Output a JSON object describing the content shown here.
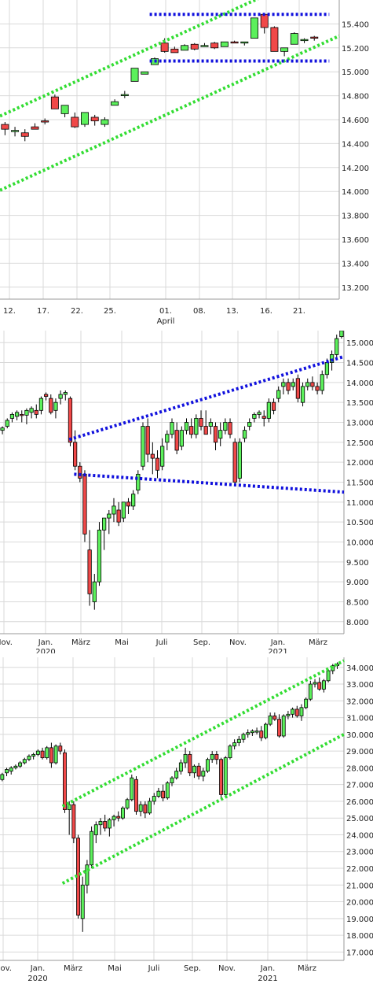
{
  "chart_data": [
    {
      "type": "candlestick",
      "ylim": [
        13100,
        15600
      ],
      "yticks": [
        13200,
        13400,
        13600,
        13800,
        14000,
        14200,
        14400,
        14600,
        14800,
        15000,
        15200,
        15400
      ],
      "xtick_labels": [
        "12.",
        "17.",
        "22.",
        "25.",
        "01.",
        "08.",
        "13.",
        "16.",
        "21."
      ],
      "xsub_label": "April",
      "grid": true,
      "candles": [
        [
          14560,
          14580,
          14470,
          14520
        ],
        [
          14500,
          14540,
          14460,
          14510
        ],
        [
          14490,
          14520,
          14420,
          14460
        ],
        [
          14540,
          14570,
          14520,
          14520
        ],
        [
          14590,
          14610,
          14560,
          14580
        ],
        [
          14790,
          14810,
          14690,
          14690
        ],
        [
          14650,
          14720,
          14620,
          14720
        ],
        [
          14620,
          14660,
          14530,
          14540
        ],
        [
          14560,
          14650,
          14540,
          14660
        ],
        [
          14620,
          14640,
          14550,
          14590
        ],
        [
          14560,
          14620,
          14540,
          14600
        ],
        [
          14720,
          14770,
          14720,
          14750
        ],
        [
          14800,
          14840,
          14780,
          14810
        ],
        [
          14920,
          15020,
          14920,
          15030
        ],
        [
          14980,
          15000,
          14980,
          15000
        ],
        [
          15060,
          15120,
          15060,
          15110
        ],
        [
          15240,
          15280,
          15160,
          15170
        ],
        [
          15190,
          15210,
          15160,
          15160
        ],
        [
          15180,
          15230,
          15180,
          15220
        ],
        [
          15230,
          15240,
          15180,
          15190
        ],
        [
          15210,
          15240,
          15210,
          15220
        ],
        [
          15240,
          15250,
          15190,
          15200
        ],
        [
          15210,
          15250,
          15210,
          15250
        ],
        [
          15250,
          15260,
          15240,
          15240
        ],
        [
          15240,
          15250,
          15220,
          15250
        ],
        [
          15280,
          15450,
          15280,
          15450
        ],
        [
          15480,
          15490,
          15320,
          15370
        ],
        [
          15370,
          15380,
          15170,
          15170
        ],
        [
          15170,
          15200,
          15130,
          15200
        ],
        [
          15230,
          15330,
          15230,
          15320
        ],
        [
          15270,
          15280,
          15240,
          15270
        ],
        [
          15290,
          15300,
          15260,
          15280
        ]
      ],
      "channel_lines": [
        {
          "color": "#33dd33",
          "from": [
            0,
            14630
          ],
          "to": [
            34,
            15920
          ]
        },
        {
          "color": "#33dd33",
          "from": [
            0,
            14010
          ],
          "to": [
            34,
            15300
          ]
        }
      ],
      "horizontal_lines": [
        {
          "color": "#1010dd",
          "value": 15480,
          "from": 15,
          "to": 33
        },
        {
          "color": "#1010dd",
          "value": 15090,
          "from": 15,
          "to": 33
        }
      ],
      "slot_count": 34
    },
    {
      "type": "candlestick",
      "ylim": [
        7700,
        15300
      ],
      "yticks": [
        8000,
        8500,
        9000,
        9500,
        10000,
        10500,
        11000,
        11500,
        12000,
        12500,
        13000,
        13500,
        14000,
        14500,
        15000
      ],
      "xtick_labels": [
        "Nov.",
        "Jan.",
        "März",
        "Mai",
        "Juli",
        "Sep.",
        "Nov.",
        "Jan.",
        "März"
      ],
      "xsub_labels": [
        "2020",
        "2021"
      ],
      "grid": true,
      "candles": [
        [
          12800,
          12900,
          12700,
          12860
        ],
        [
          12900,
          13100,
          12850,
          13050
        ],
        [
          13100,
          13250,
          13000,
          13200
        ],
        [
          13150,
          13300,
          13050,
          13250
        ],
        [
          13200,
          13300,
          13000,
          13180
        ],
        [
          13180,
          13350,
          12950,
          13300
        ],
        [
          13250,
          13400,
          13100,
          13350
        ],
        [
          13300,
          13450,
          13100,
          13200
        ],
        [
          13300,
          13650,
          13200,
          13600
        ],
        [
          13700,
          13750,
          13550,
          13650
        ],
        [
          13600,
          13700,
          13200,
          13250
        ],
        [
          13300,
          13600,
          13100,
          13500
        ],
        [
          13600,
          13800,
          13450,
          13700
        ],
        [
          13700,
          13800,
          13550,
          13750
        ],
        [
          13600,
          13650,
          12400,
          12500
        ],
        [
          12500,
          12800,
          11800,
          11900
        ],
        [
          11900,
          12000,
          11500,
          11600
        ],
        [
          11700,
          11800,
          10000,
          10200
        ],
        [
          9800,
          10300,
          8400,
          8700
        ],
        [
          8500,
          9200,
          8300,
          9000
        ],
        [
          9000,
          10500,
          8900,
          10300
        ],
        [
          10300,
          10600,
          9800,
          10600
        ],
        [
          10600,
          10800,
          10200,
          10700
        ],
        [
          10700,
          11100,
          10500,
          10900
        ],
        [
          10800,
          11000,
          10400,
          10500
        ],
        [
          10600,
          11000,
          10500,
          11000
        ],
        [
          11000,
          11100,
          10700,
          10900
        ],
        [
          10900,
          11300,
          10800,
          11200
        ],
        [
          11300,
          11800,
          11200,
          11700
        ],
        [
          11900,
          13000,
          11800,
          12900
        ],
        [
          12900,
          13100,
          12000,
          12200
        ],
        [
          12200,
          12500,
          11700,
          12100
        ],
        [
          12100,
          12300,
          11600,
          11800
        ],
        [
          11900,
          12600,
          11800,
          12400
        ],
        [
          12500,
          12800,
          12300,
          12700
        ],
        [
          12700,
          13100,
          12600,
          13000
        ],
        [
          12800,
          13000,
          12200,
          12300
        ],
        [
          12400,
          12900,
          12300,
          12800
        ],
        [
          12800,
          13100,
          12700,
          13000
        ],
        [
          12900,
          13100,
          12600,
          12700
        ],
        [
          12700,
          13200,
          12600,
          13100
        ],
        [
          13100,
          13300,
          12800,
          12900
        ],
        [
          12900,
          13300,
          12700,
          12700
        ],
        [
          12900,
          13100,
          12700,
          13000
        ],
        [
          12900,
          13000,
          12300,
          12500
        ],
        [
          12600,
          13000,
          12400,
          12800
        ],
        [
          12800,
          13100,
          12700,
          13000
        ],
        [
          13000,
          13100,
          12600,
          12700
        ],
        [
          12500,
          12600,
          11400,
          11500
        ],
        [
          11600,
          12600,
          11500,
          12500
        ],
        [
          12600,
          12900,
          12500,
          12800
        ],
        [
          12900,
          13100,
          12800,
          13000
        ],
        [
          13100,
          13250,
          13000,
          13200
        ],
        [
          13200,
          13300,
          13100,
          13250
        ],
        [
          13150,
          13300,
          12900,
          13100
        ],
        [
          13100,
          13600,
          13000,
          13500
        ],
        [
          13500,
          13600,
          13200,
          13300
        ],
        [
          13600,
          13900,
          13500,
          13800
        ],
        [
          13900,
          14100,
          13700,
          14000
        ],
        [
          14000,
          14100,
          13700,
          13800
        ],
        [
          13900,
          14100,
          13800,
          14000
        ],
        [
          14100,
          14200,
          13500,
          13600
        ],
        [
          13500,
          14000,
          13400,
          13900
        ],
        [
          13900,
          14100,
          13800,
          14000
        ],
        [
          14000,
          14150,
          13800,
          13900
        ],
        [
          13900,
          14000,
          13700,
          13800
        ],
        [
          13800,
          14300,
          13700,
          14200
        ],
        [
          14200,
          14600,
          14100,
          14500
        ],
        [
          14500,
          14800,
          14300,
          14700
        ],
        [
          14700,
          15200,
          14600,
          15100
        ],
        [
          15150,
          15350,
          15100,
          15300
        ]
      ],
      "channel_lines": [
        {
          "color": "#1010dd",
          "from": [
            14.3,
            12570
          ],
          "to": [
            71,
            14650
          ]
        },
        {
          "color": "#1010dd",
          "from": [
            15.3,
            11700
          ],
          "to": [
            71,
            11250
          ]
        }
      ],
      "slot_count": 71
    },
    {
      "type": "candlestick",
      "ylim": [
        16500,
        34600
      ],
      "yticks": [
        17000,
        18000,
        19000,
        20000,
        21000,
        22000,
        23000,
        24000,
        25000,
        26000,
        27000,
        28000,
        29000,
        30000,
        31000,
        32000,
        33000,
        34000
      ],
      "xtick_labels": [
        "Nov.",
        "Jan.",
        "März",
        "Mai",
        "Juli",
        "Sep.",
        "Nov.",
        "Jan.",
        "März"
      ],
      "xsub_labels": [
        "2020",
        "2021"
      ],
      "grid": true,
      "candles": [
        [
          27300,
          27700,
          27200,
          27600
        ],
        [
          27700,
          28000,
          27500,
          27900
        ],
        [
          27800,
          28100,
          27600,
          28000
        ],
        [
          28000,
          28200,
          27900,
          28100
        ],
        [
          28100,
          28400,
          28000,
          28300
        ],
        [
          28300,
          28600,
          28200,
          28500
        ],
        [
          28500,
          28800,
          28400,
          28700
        ],
        [
          28700,
          28900,
          28500,
          28800
        ],
        [
          28800,
          29100,
          28700,
          29000
        ],
        [
          29000,
          29200,
          28500,
          28600
        ],
        [
          28600,
          29300,
          28500,
          29200
        ],
        [
          29200,
          29500,
          28000,
          28300
        ],
        [
          28300,
          29400,
          28200,
          29300
        ],
        [
          29300,
          29500,
          28800,
          29000
        ],
        [
          28900,
          29100,
          25300,
          25500
        ],
        [
          25500,
          26000,
          24000,
          25800
        ],
        [
          25800,
          26000,
          23500,
          23800
        ],
        [
          23800,
          24000,
          19000,
          19200
        ],
        [
          19000,
          21500,
          18200,
          21000
        ],
        [
          21000,
          22500,
          20500,
          22200
        ],
        [
          22200,
          24500,
          22000,
          24200
        ],
        [
          24000,
          24800,
          23500,
          24600
        ],
        [
          24600,
          25000,
          24000,
          24800
        ],
        [
          24800,
          25200,
          24200,
          24400
        ],
        [
          24400,
          25000,
          23900,
          24900
        ],
        [
          24900,
          25200,
          24500,
          25100
        ],
        [
          25100,
          25400,
          24800,
          25000
        ],
        [
          25000,
          25700,
          24900,
          25600
        ],
        [
          25600,
          26200,
          25500,
          26100
        ],
        [
          26100,
          27600,
          26000,
          27400
        ],
        [
          27300,
          27500,
          25200,
          25400
        ],
        [
          25400,
          26000,
          25100,
          25800
        ],
        [
          25800,
          26000,
          25000,
          25300
        ],
        [
          25300,
          26200,
          25200,
          26000
        ],
        [
          26000,
          26500,
          25800,
          26300
        ],
        [
          26300,
          26800,
          26200,
          26600
        ],
        [
          26600,
          27000,
          26000,
          26200
        ],
        [
          26200,
          27200,
          26100,
          27100
        ],
        [
          27100,
          27500,
          26900,
          27400
        ],
        [
          27400,
          28000,
          27300,
          27800
        ],
        [
          27800,
          28500,
          27600,
          28300
        ],
        [
          28300,
          29200,
          28000,
          28800
        ],
        [
          28800,
          29000,
          27500,
          27700
        ],
        [
          27700,
          28200,
          27400,
          28100
        ],
        [
          28100,
          28300,
          27300,
          27500
        ],
        [
          27500,
          28000,
          27200,
          27800
        ],
        [
          27800,
          28600,
          27700,
          28500
        ],
        [
          28500,
          29000,
          28300,
          28800
        ],
        [
          28800,
          29000,
          28200,
          28500
        ],
        [
          28500,
          28600,
          26200,
          26400
        ],
        [
          26400,
          28700,
          26300,
          28600
        ],
        [
          28600,
          29400,
          28500,
          29300
        ],
        [
          29300,
          29700,
          29100,
          29500
        ],
        [
          29500,
          29900,
          29300,
          29700
        ],
        [
          29700,
          30100,
          29500,
          30000
        ],
        [
          30000,
          30300,
          29800,
          30100
        ],
        [
          30100,
          30300,
          29900,
          30200
        ],
        [
          30200,
          30400,
          30000,
          30200
        ],
        [
          30200,
          30500,
          29600,
          29800
        ],
        [
          29800,
          30700,
          29700,
          30600
        ],
        [
          30600,
          31300,
          30500,
          31100
        ],
        [
          31100,
          31300,
          30800,
          30900
        ],
        [
          30900,
          31200,
          29800,
          29900
        ],
        [
          29900,
          31200,
          29800,
          31100
        ],
        [
          31100,
          31400,
          30900,
          31200
        ],
        [
          31200,
          31600,
          31000,
          31500
        ],
        [
          31500,
          31700,
          31000,
          31100
        ],
        [
          31100,
          31800,
          30800,
          31600
        ],
        [
          31600,
          32200,
          31500,
          32100
        ],
        [
          32100,
          33200,
          32000,
          33000
        ],
        [
          33000,
          33300,
          32800,
          33100
        ],
        [
          33100,
          33400,
          32600,
          32700
        ],
        [
          32700,
          33300,
          32500,
          33200
        ],
        [
          33200,
          33900,
          33100,
          33800
        ],
        [
          33800,
          34200,
          33600,
          34100
        ],
        [
          34100,
          34300,
          33900,
          34200
        ]
      ],
      "channel_lines": [
        {
          "color": "#33dd33",
          "from": [
            14,
            25700
          ],
          "to": [
            77,
            34400
          ]
        },
        {
          "color": "#33dd33",
          "from": [
            14,
            21100
          ],
          "to": [
            77,
            30000
          ]
        }
      ],
      "slot_count": 77
    }
  ]
}
